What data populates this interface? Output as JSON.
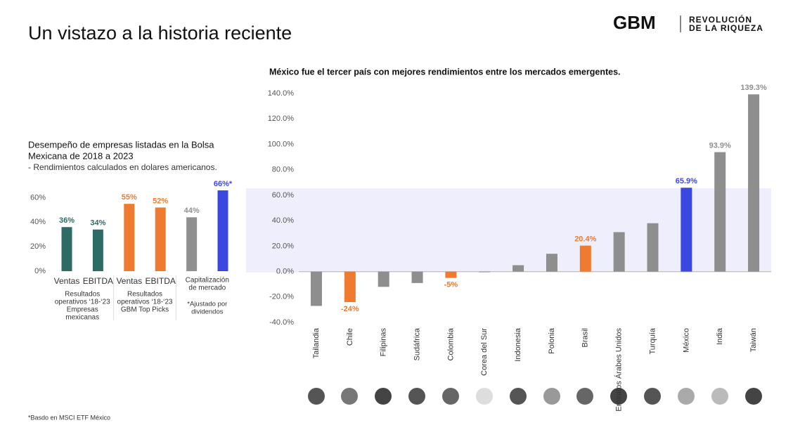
{
  "header": {
    "title": "Un vistazo a la historia reciente",
    "logo": "GBM",
    "tagline": [
      "REVOLUCIÓN",
      "DE LA RIQUEZA"
    ]
  },
  "footnote": "*Basdo en MSCI ETF México",
  "chart_data": [
    {
      "type": "bar",
      "title": [
        "Desempeño de empresas listadas en la Bolsa",
        "Mexicana de 2018 a 2023"
      ],
      "subtitle": "- Rendimientos calculados en dolares americanos.",
      "categories": [
        "Ventas",
        "EBITDA",
        "Ventas",
        "EBITDA",
        null,
        null
      ],
      "values": [
        36,
        34,
        55,
        52,
        44,
        66
      ],
      "value_labels": [
        "36%",
        "34%",
        "55%",
        "52%",
        "44%",
        "66%*"
      ],
      "colors": [
        "#2f6b66",
        "#2f6b66",
        "#ee7b30",
        "#ee7b30",
        "#909090",
        "#3b48e0"
      ],
      "groups": [
        {
          "lines": [
            "Resultados",
            "operativos ‘18-‘23",
            "Empresas",
            "mexicanas"
          ]
        },
        {
          "lines": [
            "Resultados",
            "operativos ‘18-‘23",
            "GBM Top Picks"
          ]
        },
        {
          "lines": [
            "Capitalización",
            "de mercado"
          ],
          "note": [
            "*Ajustado por",
            "dividendos"
          ]
        }
      ],
      "ylim": [
        0,
        70
      ],
      "yticks": [
        {
          "value": 0,
          "label": "0%"
        },
        {
          "value": 20,
          "label": "20%"
        },
        {
          "value": 40,
          "label": "40%"
        },
        {
          "value": 60,
          "label": "60%"
        }
      ]
    },
    {
      "type": "bar",
      "title": "México fue el tercer país con mejores rendimientos entre los mercados emergentes.",
      "categories": [
        "Tailandia",
        "Chile",
        "Filipinas",
        "Sudáfrica",
        "Colombia",
        "Corea del Sur",
        "Indonesia",
        "Polonia",
        "Brasil",
        "Emiratos Árabes Unidos",
        "Turquía",
        "México",
        "India",
        "Taiwán"
      ],
      "values": [
        -27,
        -24,
        -12,
        -9,
        -5,
        -0.5,
        5,
        14,
        20.4,
        31,
        38,
        65.9,
        93.9,
        139.3
      ],
      "value_labels": [
        null,
        "-24%",
        null,
        null,
        "-5%",
        null,
        null,
        null,
        "20.4%",
        null,
        null,
        "65.9%",
        "93.9%",
        "139.3%"
      ],
      "colors": [
        "#8e8e8e",
        "#ee7b30",
        "#8e8e8e",
        "#8e8e8e",
        "#ee7b30",
        "#8e8e8e",
        "#8e8e8e",
        "#8e8e8e",
        "#ee7b30",
        "#8e8e8e",
        "#8e8e8e",
        "#3b48e0",
        "#8e8e8e",
        "#8e8e8e"
      ],
      "ylim": [
        -40,
        145
      ],
      "yticks": [
        {
          "value": -40,
          "label": "-40.0%"
        },
        {
          "value": -20,
          "label": "-20.0%"
        },
        {
          "value": 0,
          "label": "0.0%"
        },
        {
          "value": 20,
          "label": "20.0%"
        },
        {
          "value": 40,
          "label": "40.0%"
        },
        {
          "value": 60,
          "label": "60.0%"
        },
        {
          "value": 80,
          "label": "80.0%"
        },
        {
          "value": 100,
          "label": "100.0%"
        },
        {
          "value": 120,
          "label": "120.0%"
        },
        {
          "value": 140,
          "label": "140.0%"
        }
      ]
    }
  ]
}
